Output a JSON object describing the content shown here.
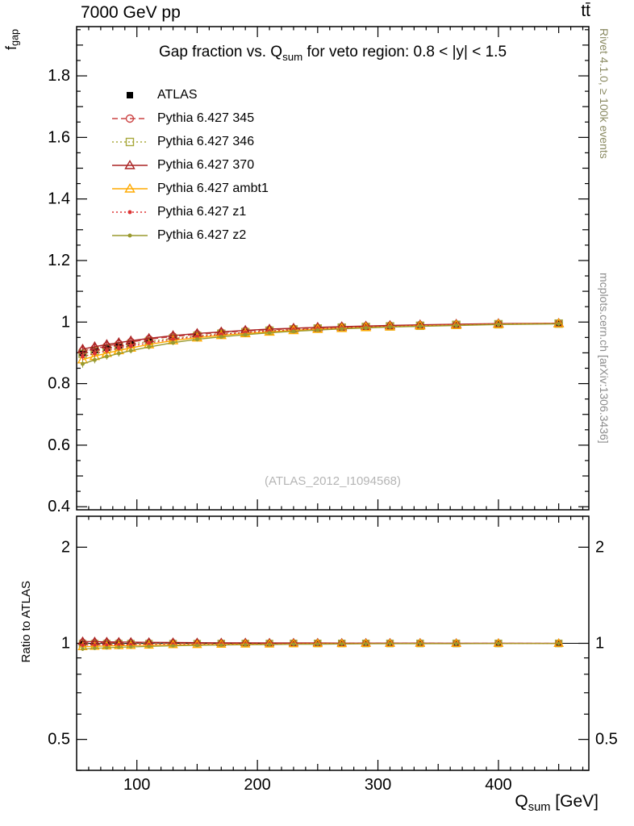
{
  "header": {
    "left_label": "7000 GeV pp",
    "right_label": "tt̄"
  },
  "side_notes": {
    "generator_note": "Rivet 4.1.0, ≥ 100k events",
    "source_note": "mcplots.cern.ch [arXiv:1306.3436]"
  },
  "watermark": "(ATLAS_2012_I1094568)",
  "title": {
    "pre": "Gap fraction vs. Q",
    "sub": "sum",
    "post": " for veto region: 0.8 < |y| < 1.5"
  },
  "axes": {
    "ylabel_main_pre": "f",
    "ylabel_main_sub": "gap",
    "ylabel_ratio": "Ratio to ATLAS",
    "xlabel_pre": "Q",
    "xlabel_sub": "sum",
    "xlabel_post": " [GeV]"
  },
  "chart_data": {
    "type": "line",
    "title": "Gap fraction vs. Q_sum for veto region: 0.8 < |y| < 1.5",
    "xlabel": "Q_sum [GeV]",
    "ylabel": "f_gap",
    "grid": false,
    "legend_position": "top-left",
    "xlim": [
      50,
      475
    ],
    "xticks": [
      100,
      200,
      300,
      400
    ],
    "xtick_labels": [
      "100",
      "200",
      "300",
      "400"
    ],
    "ylim_main": [
      0.39,
      1.96
    ],
    "yticks_main": [
      0.4,
      0.6,
      0.8,
      1.0,
      1.2,
      1.4,
      1.6,
      1.8
    ],
    "ytick_labels_main": [
      "0.4",
      "0.6",
      "0.8",
      "1",
      "1.2",
      "1.4",
      "1.6",
      "1.8"
    ],
    "ratio": {
      "scale": "log",
      "ylim": [
        0.4,
        2.5
      ],
      "ticks": [
        0.5,
        1,
        2
      ],
      "tick_labels": [
        "0.5",
        "1",
        "2"
      ],
      "minor_ticks": [
        0.4,
        0.6,
        0.7,
        0.8,
        0.9
      ]
    },
    "x": [
      55,
      65,
      75,
      85,
      95,
      110,
      130,
      150,
      170,
      190,
      210,
      230,
      250,
      270,
      290,
      310,
      335,
      365,
      400,
      450
    ],
    "yerr": [
      0.012,
      0.011,
      0.01,
      0.01,
      0.009,
      0.008,
      0.008,
      0.007,
      0.006,
      0.006,
      0.005,
      0.005,
      0.004,
      0.004,
      0.004,
      0.003,
      0.003,
      0.003,
      0.003,
      0.003
    ],
    "series": [
      {
        "name": "ATLAS",
        "color": "#000000",
        "marker": "square-filled",
        "line": "none",
        "values": [
          0.9,
          0.909,
          0.917,
          0.924,
          0.931,
          0.94,
          0.95,
          0.958,
          0.964,
          0.969,
          0.974,
          0.977,
          0.98,
          0.983,
          0.985,
          0.987,
          0.989,
          0.992,
          0.994,
          0.996
        ]
      },
      {
        "name": "Pythia 6.427 345",
        "color": "#cc4444",
        "marker": "circle-open",
        "line": "dashed",
        "values": [
          0.906,
          0.914,
          0.922,
          0.929,
          0.935,
          0.944,
          0.953,
          0.96,
          0.966,
          0.971,
          0.975,
          0.978,
          0.981,
          0.984,
          0.986,
          0.988,
          0.99,
          0.992,
          0.994,
          0.996
        ]
      },
      {
        "name": "Pythia 6.427 346",
        "color": "#a8a83c",
        "marker": "square-open",
        "line": "dotted",
        "values": [
          0.897,
          0.906,
          0.914,
          0.921,
          0.928,
          0.937,
          0.947,
          0.955,
          0.962,
          0.967,
          0.972,
          0.976,
          0.979,
          0.982,
          0.984,
          0.986,
          0.988,
          0.991,
          0.993,
          0.995
        ]
      },
      {
        "name": "Pythia 6.427 370",
        "color": "#aa2222",
        "marker": "triangle-open",
        "line": "solid",
        "values": [
          0.912,
          0.92,
          0.927,
          0.933,
          0.939,
          0.947,
          0.956,
          0.963,
          0.968,
          0.973,
          0.977,
          0.98,
          0.983,
          0.985,
          0.987,
          0.989,
          0.991,
          0.993,
          0.995,
          0.996
        ]
      },
      {
        "name": "Pythia 6.427 ambt1",
        "color": "#ffaa00",
        "marker": "triangle-open",
        "line": "solid",
        "values": [
          0.878,
          0.889,
          0.899,
          0.908,
          0.916,
          0.927,
          0.94,
          0.949,
          0.957,
          0.963,
          0.968,
          0.973,
          0.977,
          0.98,
          0.983,
          0.985,
          0.988,
          0.99,
          0.993,
          0.995
        ]
      },
      {
        "name": "Pythia 6.427 z1",
        "color": "#dd3333",
        "marker": "dot",
        "line": "dotted",
        "values": [
          0.888,
          0.898,
          0.907,
          0.915,
          0.922,
          0.932,
          0.944,
          0.953,
          0.96,
          0.966,
          0.971,
          0.975,
          0.978,
          0.981,
          0.984,
          0.986,
          0.988,
          0.991,
          0.993,
          0.995
        ]
      },
      {
        "name": "Pythia 6.427 z2",
        "color": "#9a9a2e",
        "marker": "dot",
        "line": "solid",
        "values": [
          0.864,
          0.877,
          0.888,
          0.898,
          0.907,
          0.919,
          0.933,
          0.944,
          0.952,
          0.959,
          0.965,
          0.97,
          0.974,
          0.978,
          0.981,
          0.984,
          0.986,
          0.989,
          0.992,
          0.994
        ]
      }
    ]
  }
}
